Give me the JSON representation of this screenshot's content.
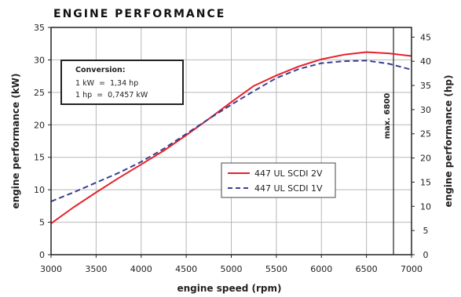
{
  "chart_data": {
    "type": "line",
    "title": "ENGINE PERFORMANCE",
    "xlabel": "engine speed (rpm)",
    "ylabel": "engine performance (kW)",
    "ylabel_right": "engine performance (hp)",
    "xlim": [
      3000,
      7000
    ],
    "ylim": [
      0,
      35
    ],
    "ylim_right": [
      0,
      47
    ],
    "x_ticks": [
      3000,
      3500,
      4000,
      4500,
      5000,
      5500,
      6000,
      6500,
      7000
    ],
    "y_ticks": [
      0,
      5,
      10,
      15,
      20,
      25,
      30,
      35
    ],
    "y_ticks_right": [
      0,
      5,
      10,
      15,
      20,
      25,
      30,
      35,
      40,
      45
    ],
    "grid": true,
    "legend_position": "center-right",
    "series": [
      {
        "name": "447 UL SCDI 2V",
        "color": "#e8202a",
        "style": "solid",
        "x": [
          3000,
          3250,
          3500,
          3750,
          4000,
          4250,
          4500,
          4750,
          5000,
          5250,
          5500,
          5750,
          6000,
          6250,
          6500,
          6750,
          7000
        ],
        "y": [
          4.8,
          7.3,
          9.6,
          11.8,
          13.9,
          16.0,
          18.4,
          20.9,
          23.5,
          26.0,
          27.6,
          29.0,
          30.1,
          30.8,
          31.2,
          31.0,
          30.6
        ]
      },
      {
        "name": "447 UL SCDI 1V",
        "color": "#3a3f8f",
        "style": "dashed",
        "x": [
          3000,
          3250,
          3500,
          3750,
          4000,
          4250,
          4500,
          4750,
          5000,
          5250,
          5500,
          5750,
          6000,
          6250,
          6500,
          6750,
          7000
        ],
        "y": [
          8.2,
          9.6,
          11.1,
          12.6,
          14.3,
          16.3,
          18.6,
          20.9,
          23.1,
          25.2,
          27.2,
          28.6,
          29.5,
          29.8,
          29.9,
          29.4,
          28.5
        ]
      }
    ],
    "annotations": {
      "max_line": {
        "x": 6800,
        "label": "max. 6800"
      },
      "conversion_box": {
        "title": "Conversion:",
        "line1": "1 kW  =  1,34 hp",
        "line2": "1 hp  =  0,7457 kW"
      }
    }
  },
  "colors": {
    "grid": "#b8b8b8",
    "frame": "#222222",
    "max_line": "#333333"
  }
}
